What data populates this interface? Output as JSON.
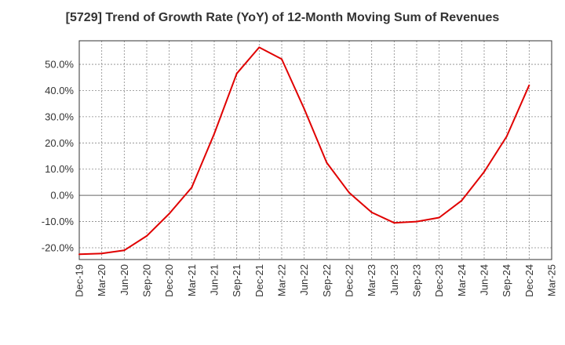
{
  "chart_data": {
    "type": "line",
    "title": "[5729]  Trend of Growth Rate (YoY) of 12-Month Moving Sum of Revenues",
    "xlabel": "",
    "ylabel": "",
    "x": [
      "Dec-19",
      "Mar-20",
      "Jun-20",
      "Sep-20",
      "Dec-20",
      "Mar-21",
      "Jun-21",
      "Sep-21",
      "Dec-21",
      "Mar-22",
      "Jun-22",
      "Sep-22",
      "Dec-22",
      "Mar-23",
      "Jun-23",
      "Sep-23",
      "Dec-23",
      "Mar-24",
      "Jun-24",
      "Sep-24",
      "Dec-24"
    ],
    "x_ticks": [
      "Dec-19",
      "Mar-20",
      "Jun-20",
      "Sep-20",
      "Dec-20",
      "Mar-21",
      "Jun-21",
      "Sep-21",
      "Dec-21",
      "Mar-22",
      "Jun-22",
      "Sep-22",
      "Dec-22",
      "Mar-23",
      "Jun-23",
      "Sep-23",
      "Dec-23",
      "Mar-24",
      "Jun-24",
      "Sep-24",
      "Dec-24",
      "Mar-25"
    ],
    "series": [
      {
        "values": [
          -22.5,
          -22.2,
          -21.0,
          -15.5,
          -7.0,
          3.0,
          23.5,
          46.5,
          56.5,
          52.0,
          33.0,
          12.5,
          1.0,
          -6.5,
          -10.5,
          -10.0,
          -8.5,
          -2.0,
          9.0,
          22.5,
          42.0
        ],
        "color": "#e00000"
      }
    ],
    "yticks": [
      "-20.0%",
      "-10.0%",
      "0.0%",
      "10.0%",
      "20.0%",
      "30.0%",
      "40.0%",
      "50.0%"
    ],
    "ytick_values": [
      -20,
      -10,
      0,
      10,
      20,
      30,
      40,
      50
    ],
    "ylim": [
      -24.5,
      59
    ],
    "grid": true,
    "legend": "none"
  }
}
